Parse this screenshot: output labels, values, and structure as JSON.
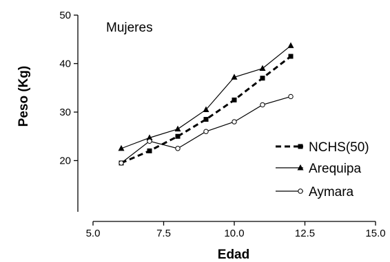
{
  "chart_data": {
    "type": "line",
    "title": "",
    "annotation": "Mujeres",
    "xlabel": "Edad",
    "ylabel": "Peso (Kg)",
    "xlim": [
      5.0,
      15.0
    ],
    "ylim": [
      10,
      50
    ],
    "x_ticks": [
      "5.0",
      "7.5",
      "10.0",
      "12.5",
      "15.0"
    ],
    "x_tick_values": [
      5.0,
      7.5,
      10.0,
      12.5,
      15.0
    ],
    "y_ticks": [
      "20",
      "30",
      "40",
      "50"
    ],
    "y_tick_values": [
      20,
      30,
      40,
      50
    ],
    "grid": false,
    "legend_position": "bottom-right",
    "series": [
      {
        "name": "NCHS(50)",
        "style": "dashed",
        "marker": "square-filled",
        "color": "#000000",
        "x": [
          6,
          7,
          8,
          9,
          10,
          11,
          12
        ],
        "y": [
          19.5,
          22.0,
          25.0,
          28.5,
          32.5,
          37.0,
          41.5
        ]
      },
      {
        "name": "Arequipa",
        "style": "solid",
        "marker": "triangle-filled",
        "color": "#000000",
        "x": [
          6,
          7,
          8,
          9,
          10,
          11,
          12
        ],
        "y": [
          22.5,
          24.7,
          26.5,
          30.5,
          37.2,
          39.0,
          43.7
        ]
      },
      {
        "name": "Aymara",
        "style": "solid",
        "marker": "circle-open",
        "color": "#000000",
        "x": [
          6,
          7,
          8,
          9,
          10,
          11,
          12
        ],
        "y": [
          19.5,
          24.0,
          22.5,
          26.0,
          28.0,
          31.5,
          33.2
        ]
      }
    ]
  }
}
